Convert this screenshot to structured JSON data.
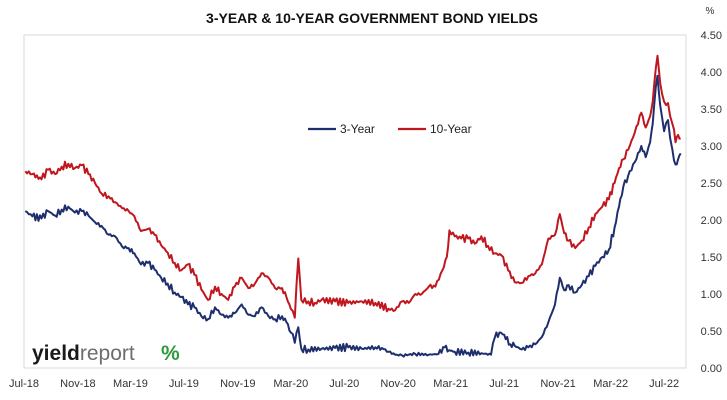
{
  "chart_data": {
    "type": "line",
    "title": "3-YEAR & 10-YEAR GOVERNMENT BOND YIELDS",
    "y_unit": "%",
    "ylim": [
      0,
      4.5
    ],
    "yticks": [
      "0.00",
      "0.50",
      "1.00",
      "1.50",
      "2.00",
      "2.50",
      "3.00",
      "3.50",
      "4.00",
      "4.50"
    ],
    "xlim": [
      "2018-07-01",
      "2022-08-20"
    ],
    "xticks": [
      {
        "date": "2018-07-01",
        "label": "Jul-18"
      },
      {
        "date": "2018-11-01",
        "label": "Nov-18"
      },
      {
        "date": "2019-03-01",
        "label": "Mar-19"
      },
      {
        "date": "2019-07-01",
        "label": "Jul-19"
      },
      {
        "date": "2019-11-01",
        "label": "Nov-19"
      },
      {
        "date": "2020-03-01",
        "label": "Mar-20"
      },
      {
        "date": "2020-07-01",
        "label": "Jul-20"
      },
      {
        "date": "2020-11-01",
        "label": "Nov-20"
      },
      {
        "date": "2021-03-01",
        "label": "Mar-21"
      },
      {
        "date": "2021-07-01",
        "label": "Jul-21"
      },
      {
        "date": "2021-11-01",
        "label": "Nov-21"
      },
      {
        "date": "2022-03-01",
        "label": "Mar-22"
      },
      {
        "date": "2022-07-01",
        "label": "Jul-22"
      }
    ],
    "grid": false,
    "legend_position": "top-center",
    "series": [
      {
        "name": "3-Year",
        "color": "#1f2f6e",
        "points": [
          [
            "2018-07-04",
            2.12
          ],
          [
            "2018-07-20",
            2.05
          ],
          [
            "2018-08-10",
            2.02
          ],
          [
            "2018-08-25",
            2.12
          ],
          [
            "2018-09-10",
            2.06
          ],
          [
            "2018-09-25",
            2.14
          ],
          [
            "2018-10-10",
            2.18
          ],
          [
            "2018-10-25",
            2.1
          ],
          [
            "2018-11-10",
            2.12
          ],
          [
            "2018-11-25",
            2.06
          ],
          [
            "2018-12-10",
            1.97
          ],
          [
            "2018-12-25",
            1.92
          ],
          [
            "2019-01-10",
            1.8
          ],
          [
            "2019-01-25",
            1.78
          ],
          [
            "2019-02-10",
            1.64
          ],
          [
            "2019-02-25",
            1.62
          ],
          [
            "2019-03-10",
            1.55
          ],
          [
            "2019-03-25",
            1.4
          ],
          [
            "2019-04-10",
            1.42
          ],
          [
            "2019-04-25",
            1.33
          ],
          [
            "2019-05-10",
            1.22
          ],
          [
            "2019-05-25",
            1.14
          ],
          [
            "2019-06-10",
            1.02
          ],
          [
            "2019-06-25",
            0.96
          ],
          [
            "2019-07-10",
            0.86
          ],
          [
            "2019-07-25",
            0.82
          ],
          [
            "2019-08-10",
            0.7
          ],
          [
            "2019-08-25",
            0.66
          ],
          [
            "2019-09-10",
            0.82
          ],
          [
            "2019-09-25",
            0.72
          ],
          [
            "2019-10-10",
            0.68
          ],
          [
            "2019-10-25",
            0.74
          ],
          [
            "2019-11-10",
            0.86
          ],
          [
            "2019-11-25",
            0.72
          ],
          [
            "2019-12-10",
            0.7
          ],
          [
            "2019-12-25",
            0.82
          ],
          [
            "2020-01-10",
            0.7
          ],
          [
            "2020-01-25",
            0.66
          ],
          [
            "2020-02-10",
            0.7
          ],
          [
            "2020-02-20",
            0.62
          ],
          [
            "2020-03-01",
            0.48
          ],
          [
            "2020-03-10",
            0.34
          ],
          [
            "2020-03-18",
            0.55
          ],
          [
            "2020-03-25",
            0.26
          ],
          [
            "2020-04-10",
            0.25
          ],
          [
            "2020-05-10",
            0.26
          ],
          [
            "2020-06-10",
            0.27
          ],
          [
            "2020-07-10",
            0.28
          ],
          [
            "2020-08-10",
            0.26
          ],
          [
            "2020-09-10",
            0.28
          ],
          [
            "2020-09-25",
            0.27
          ],
          [
            "2020-10-10",
            0.22
          ],
          [
            "2020-10-25",
            0.18
          ],
          [
            "2020-11-10",
            0.17
          ],
          [
            "2020-12-10",
            0.19
          ],
          [
            "2021-01-10",
            0.18
          ],
          [
            "2021-02-01",
            0.19
          ],
          [
            "2021-02-15",
            0.28
          ],
          [
            "2021-02-25",
            0.24
          ],
          [
            "2021-03-10",
            0.22
          ],
          [
            "2021-04-10",
            0.21
          ],
          [
            "2021-05-10",
            0.2
          ],
          [
            "2021-06-01",
            0.18
          ],
          [
            "2021-06-10",
            0.42
          ],
          [
            "2021-06-20",
            0.48
          ],
          [
            "2021-07-01",
            0.45
          ],
          [
            "2021-07-15",
            0.32
          ],
          [
            "2021-07-25",
            0.3
          ],
          [
            "2021-08-10",
            0.25
          ],
          [
            "2021-08-25",
            0.28
          ],
          [
            "2021-09-10",
            0.32
          ],
          [
            "2021-09-25",
            0.42
          ],
          [
            "2021-10-10",
            0.62
          ],
          [
            "2021-10-25",
            0.86
          ],
          [
            "2021-11-05",
            1.22
          ],
          [
            "2021-11-15",
            1.05
          ],
          [
            "2021-11-25",
            1.12
          ],
          [
            "2021-12-10",
            1.02
          ],
          [
            "2021-12-25",
            1.12
          ],
          [
            "2022-01-10",
            1.24
          ],
          [
            "2022-01-25",
            1.38
          ],
          [
            "2022-02-10",
            1.5
          ],
          [
            "2022-02-25",
            1.6
          ],
          [
            "2022-03-10",
            1.9
          ],
          [
            "2022-03-20",
            2.18
          ],
          [
            "2022-03-30",
            2.45
          ],
          [
            "2022-04-10",
            2.6
          ],
          [
            "2022-04-25",
            2.78
          ],
          [
            "2022-05-10",
            3.0
          ],
          [
            "2022-05-20",
            2.85
          ],
          [
            "2022-05-30",
            3.05
          ],
          [
            "2022-06-05",
            3.3
          ],
          [
            "2022-06-12",
            3.8
          ],
          [
            "2022-06-16",
            3.95
          ],
          [
            "2022-06-22",
            3.55
          ],
          [
            "2022-07-01",
            3.2
          ],
          [
            "2022-07-10",
            3.35
          ],
          [
            "2022-07-15",
            3.1
          ],
          [
            "2022-07-20",
            2.95
          ],
          [
            "2022-07-27",
            2.75
          ],
          [
            "2022-08-02",
            2.82
          ],
          [
            "2022-08-08",
            2.9
          ]
        ]
      },
      {
        "name": "10-Year",
        "color": "#c0171f",
        "points": [
          [
            "2018-07-04",
            2.66
          ],
          [
            "2018-07-20",
            2.62
          ],
          [
            "2018-08-10",
            2.55
          ],
          [
            "2018-08-25",
            2.68
          ],
          [
            "2018-09-10",
            2.62
          ],
          [
            "2018-09-25",
            2.72
          ],
          [
            "2018-10-10",
            2.76
          ],
          [
            "2018-10-25",
            2.7
          ],
          [
            "2018-11-10",
            2.74
          ],
          [
            "2018-11-25",
            2.62
          ],
          [
            "2018-12-10",
            2.5
          ],
          [
            "2018-12-25",
            2.36
          ],
          [
            "2019-01-10",
            2.32
          ],
          [
            "2019-01-25",
            2.24
          ],
          [
            "2019-02-10",
            2.16
          ],
          [
            "2019-02-25",
            2.12
          ],
          [
            "2019-03-10",
            2.05
          ],
          [
            "2019-03-25",
            1.85
          ],
          [
            "2019-04-10",
            1.88
          ],
          [
            "2019-04-25",
            1.8
          ],
          [
            "2019-05-10",
            1.66
          ],
          [
            "2019-05-25",
            1.56
          ],
          [
            "2019-06-10",
            1.42
          ],
          [
            "2019-06-25",
            1.32
          ],
          [
            "2019-07-10",
            1.4
          ],
          [
            "2019-07-25",
            1.26
          ],
          [
            "2019-08-10",
            1.06
          ],
          [
            "2019-08-25",
            0.92
          ],
          [
            "2019-09-10",
            1.1
          ],
          [
            "2019-09-25",
            1.0
          ],
          [
            "2019-10-10",
            0.92
          ],
          [
            "2019-10-25",
            1.1
          ],
          [
            "2019-11-10",
            1.22
          ],
          [
            "2019-11-25",
            1.08
          ],
          [
            "2019-12-10",
            1.14
          ],
          [
            "2019-12-25",
            1.28
          ],
          [
            "2020-01-10",
            1.22
          ],
          [
            "2020-01-25",
            1.08
          ],
          [
            "2020-02-10",
            1.08
          ],
          [
            "2020-02-20",
            0.96
          ],
          [
            "2020-03-01",
            0.8
          ],
          [
            "2020-03-10",
            0.68
          ],
          [
            "2020-03-18",
            1.48
          ],
          [
            "2020-03-25",
            0.92
          ],
          [
            "2020-04-10",
            0.9
          ],
          [
            "2020-04-25",
            0.88
          ],
          [
            "2020-05-10",
            0.92
          ],
          [
            "2020-06-10",
            0.9
          ],
          [
            "2020-07-10",
            0.88
          ],
          [
            "2020-08-10",
            0.9
          ],
          [
            "2020-09-10",
            0.88
          ],
          [
            "2020-10-10",
            0.8
          ],
          [
            "2020-10-25",
            0.78
          ],
          [
            "2020-11-10",
            0.9
          ],
          [
            "2020-11-25",
            0.88
          ],
          [
            "2020-12-10",
            1.0
          ],
          [
            "2020-12-25",
            1.0
          ],
          [
            "2021-01-10",
            1.1
          ],
          [
            "2021-01-25",
            1.1
          ],
          [
            "2021-02-10",
            1.32
          ],
          [
            "2021-02-20",
            1.5
          ],
          [
            "2021-02-26",
            1.86
          ],
          [
            "2021-03-10",
            1.78
          ],
          [
            "2021-03-25",
            1.75
          ],
          [
            "2021-04-10",
            1.75
          ],
          [
            "2021-04-25",
            1.68
          ],
          [
            "2021-05-10",
            1.78
          ],
          [
            "2021-05-25",
            1.65
          ],
          [
            "2021-06-10",
            1.55
          ],
          [
            "2021-06-25",
            1.52
          ],
          [
            "2021-07-10",
            1.32
          ],
          [
            "2021-07-25",
            1.16
          ],
          [
            "2021-08-10",
            1.15
          ],
          [
            "2021-08-25",
            1.24
          ],
          [
            "2021-09-10",
            1.28
          ],
          [
            "2021-09-25",
            1.4
          ],
          [
            "2021-10-10",
            1.75
          ],
          [
            "2021-10-25",
            1.8
          ],
          [
            "2021-11-05",
            2.08
          ],
          [
            "2021-11-15",
            1.82
          ],
          [
            "2021-11-25",
            1.72
          ],
          [
            "2021-12-10",
            1.62
          ],
          [
            "2021-12-25",
            1.72
          ],
          [
            "2022-01-10",
            1.9
          ],
          [
            "2022-01-25",
            2.08
          ],
          [
            "2022-02-10",
            2.18
          ],
          [
            "2022-02-25",
            2.28
          ],
          [
            "2022-03-10",
            2.5
          ],
          [
            "2022-03-20",
            2.7
          ],
          [
            "2022-03-30",
            2.82
          ],
          [
            "2022-04-10",
            2.95
          ],
          [
            "2022-04-25",
            3.18
          ],
          [
            "2022-05-10",
            3.45
          ],
          [
            "2022-05-20",
            3.25
          ],
          [
            "2022-05-30",
            3.4
          ],
          [
            "2022-06-05",
            3.6
          ],
          [
            "2022-06-12",
            4.05
          ],
          [
            "2022-06-16",
            4.22
          ],
          [
            "2022-06-22",
            3.85
          ],
          [
            "2022-07-01",
            3.6
          ],
          [
            "2022-07-10",
            3.58
          ],
          [
            "2022-07-15",
            3.4
          ],
          [
            "2022-07-20",
            3.3
          ],
          [
            "2022-07-27",
            3.05
          ],
          [
            "2022-08-02",
            3.15
          ],
          [
            "2022-08-08",
            3.1
          ]
        ]
      }
    ]
  },
  "brand": {
    "name_part1": "yield",
    "name_part2": "report",
    "name_part3": "%",
    "colors": {
      "part1": "#1a1a1a",
      "part2": "#6d6d6d",
      "pct_green": "#2e9a3c",
      "pct_red": "#c0171f"
    }
  }
}
